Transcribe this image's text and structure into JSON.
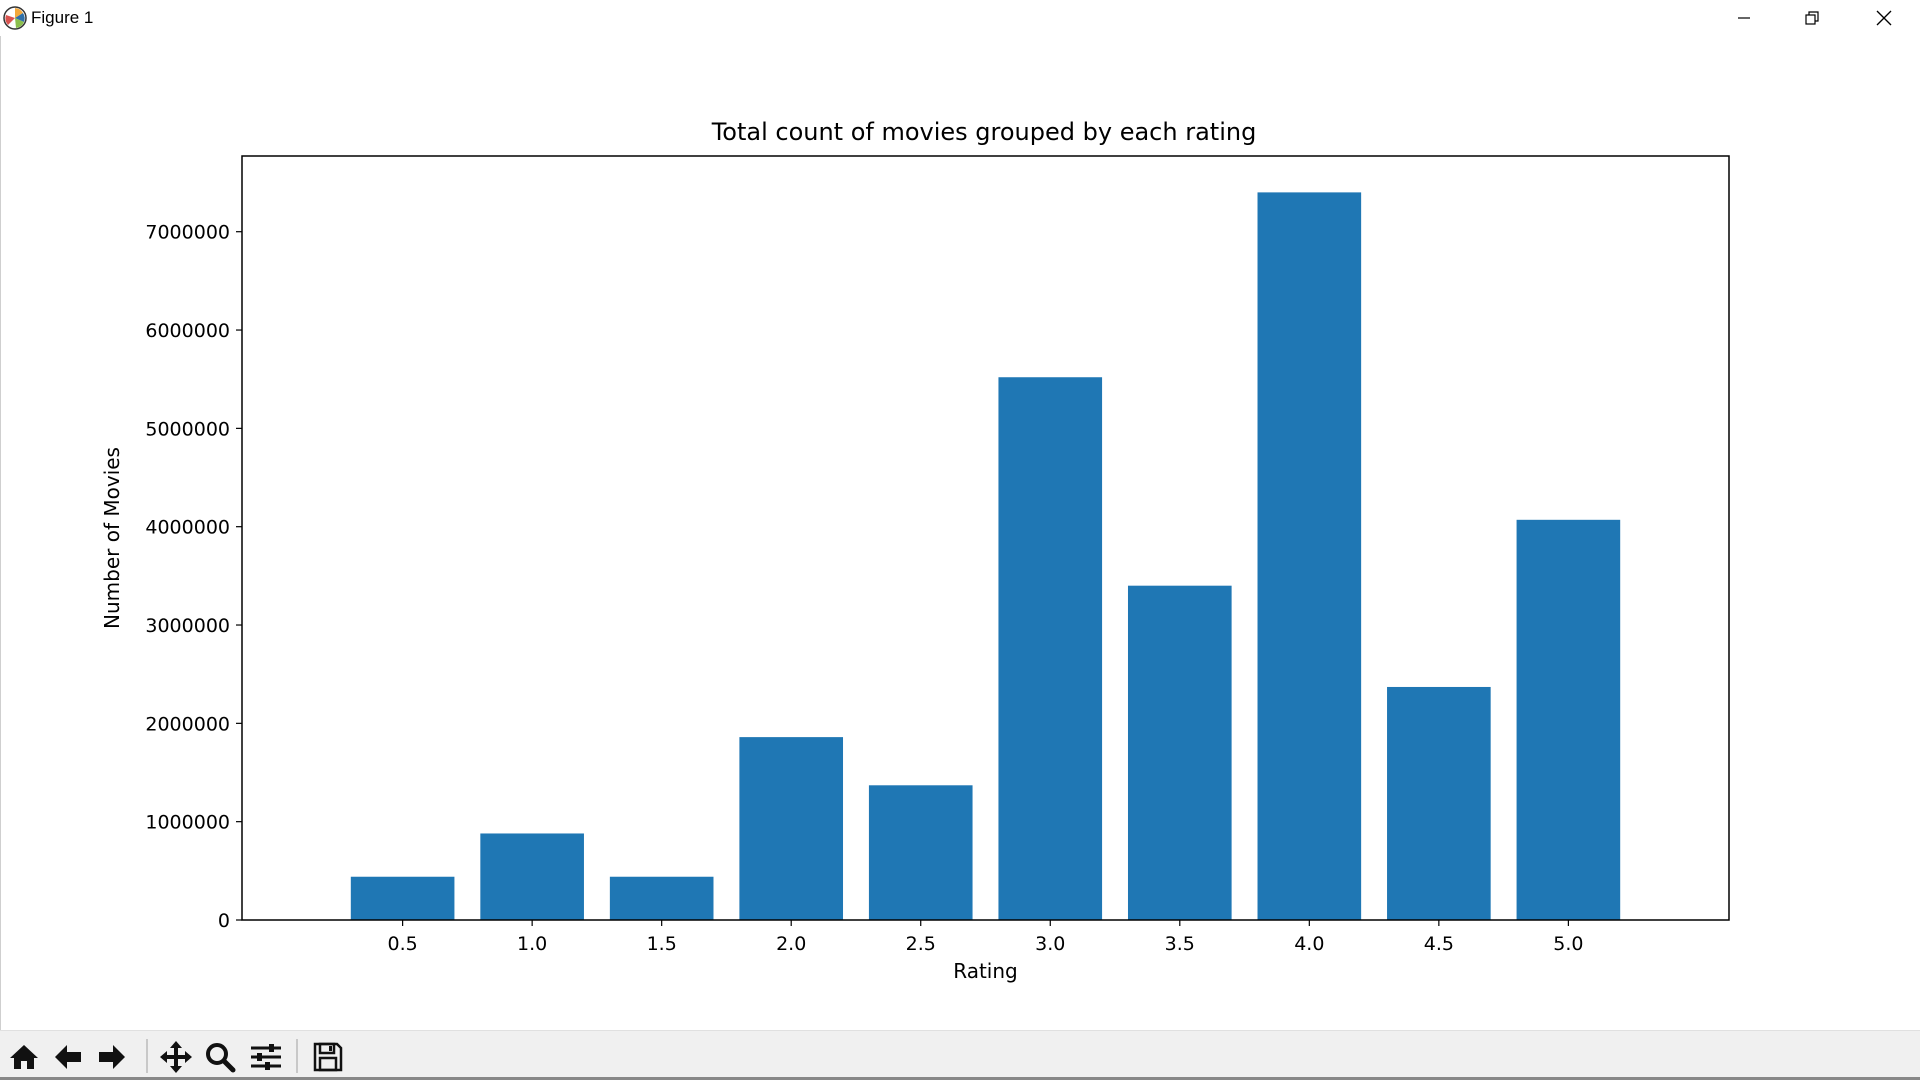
{
  "window": {
    "title": "Figure 1",
    "app_icon": "matplotlib-icon",
    "controls": [
      "minimize-icon",
      "restore-icon",
      "close-icon"
    ]
  },
  "toolbar": {
    "buttons": [
      "home-icon",
      "back-arrow-icon",
      "forward-arrow-icon",
      "pan-icon",
      "zoom-icon",
      "subplots-config-icon",
      "save-icon"
    ]
  },
  "colors": {
    "bar": "#1f77b4",
    "axes": "#000000",
    "background": "#ffffff"
  },
  "chart_data": {
    "type": "bar",
    "title": "Total count of movies grouped by each rating",
    "xlabel": "Rating",
    "ylabel": "Number of Movies",
    "categories": [
      "0.5",
      "1.0",
      "1.5",
      "2.0",
      "2.5",
      "3.0",
      "3.5",
      "4.0",
      "4.5",
      "5.0"
    ],
    "values": [
      440000,
      880000,
      440000,
      1860000,
      1370000,
      5520000,
      3400000,
      7400000,
      2370000,
      4070000
    ],
    "ylim": [
      0,
      7770000
    ],
    "yticks": [
      0,
      1000000,
      2000000,
      3000000,
      4000000,
      5000000,
      6000000,
      7000000
    ],
    "ytick_labels": [
      "0",
      "1000000",
      "2000000",
      "3000000",
      "4000000",
      "5000000",
      "6000000",
      "7000000"
    ],
    "grid": false,
    "legend": "none"
  }
}
